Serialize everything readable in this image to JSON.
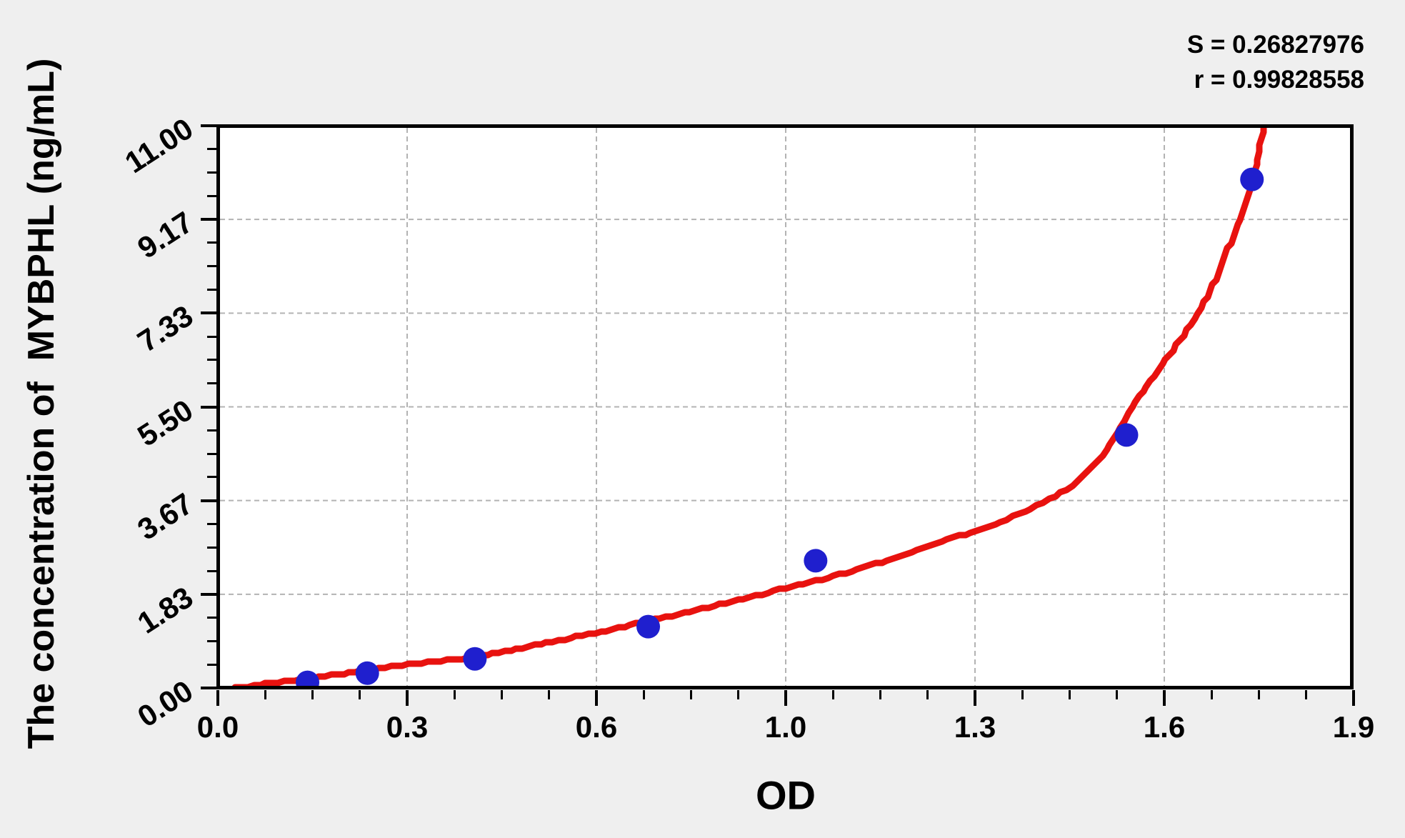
{
  "page": {
    "background": "#efefef",
    "plot_background": "#ffffff",
    "axis_color": "#000000",
    "grid_color": "#b3b3b3"
  },
  "chart_data": {
    "type": "scatter",
    "title": "",
    "xlabel": "OD",
    "ylabel": "The concentration of  MYBPHL (ng/mL)",
    "xlim": [
      0,
      1.9
    ],
    "ylim": [
      0,
      11
    ],
    "x_tick_labels": [
      "0.0",
      "0.3",
      "0.6",
      "1.0",
      "1.3",
      "1.6",
      "1.9"
    ],
    "y_tick_labels": [
      "0.00",
      "1.83",
      "3.67",
      "5.50",
      "7.33",
      "9.17",
      "11.00"
    ],
    "minor_ticks_per_interval": 3,
    "grid": {
      "show": true,
      "style": "dashed",
      "at": "major-ticks"
    },
    "legend": {
      "show": false
    },
    "annotations": {
      "s": "S = 0.26827976",
      "r": "r = 0.99828558"
    },
    "series": [
      {
        "name": "standard-points",
        "type": "scatter",
        "marker": "circle",
        "color": "#1f1fce",
        "points": [
          [
            0.15,
            0.11
          ],
          [
            0.25,
            0.29
          ],
          [
            0.43,
            0.57
          ],
          [
            0.72,
            1.2
          ],
          [
            1.0,
            2.49
          ],
          [
            1.52,
            4.95
          ],
          [
            1.73,
            9.95
          ]
        ]
      },
      {
        "name": "fitted-curve",
        "type": "line",
        "color": "#e8120f",
        "points": [
          [
            0.03,
            0.0
          ],
          [
            0.08,
            0.08
          ],
          [
            0.15,
            0.18
          ],
          [
            0.2,
            0.27
          ],
          [
            0.25,
            0.35
          ],
          [
            0.3,
            0.43
          ],
          [
            0.35,
            0.5
          ],
          [
            0.43,
            0.6
          ],
          [
            0.5,
            0.76
          ],
          [
            0.57,
            0.93
          ],
          [
            0.65,
            1.12
          ],
          [
            0.72,
            1.31
          ],
          [
            0.8,
            1.52
          ],
          [
            0.88,
            1.74
          ],
          [
            0.95,
            1.96
          ],
          [
            1.0,
            2.1
          ],
          [
            1.08,
            2.35
          ],
          [
            1.15,
            2.62
          ],
          [
            1.22,
            2.9
          ],
          [
            1.27,
            3.08
          ],
          [
            1.33,
            3.35
          ],
          [
            1.38,
            3.62
          ],
          [
            1.43,
            3.95
          ],
          [
            1.48,
            4.55
          ],
          [
            1.51,
            5.1
          ],
          [
            1.53,
            5.5
          ],
          [
            1.56,
            6.0
          ],
          [
            1.58,
            6.33
          ],
          [
            1.61,
            6.8
          ],
          [
            1.64,
            7.33
          ],
          [
            1.67,
            8.0
          ],
          [
            1.69,
            8.6
          ],
          [
            1.71,
            9.17
          ],
          [
            1.73,
            9.9
          ],
          [
            1.74,
            10.35
          ],
          [
            1.75,
            11.0
          ]
        ]
      }
    ]
  }
}
